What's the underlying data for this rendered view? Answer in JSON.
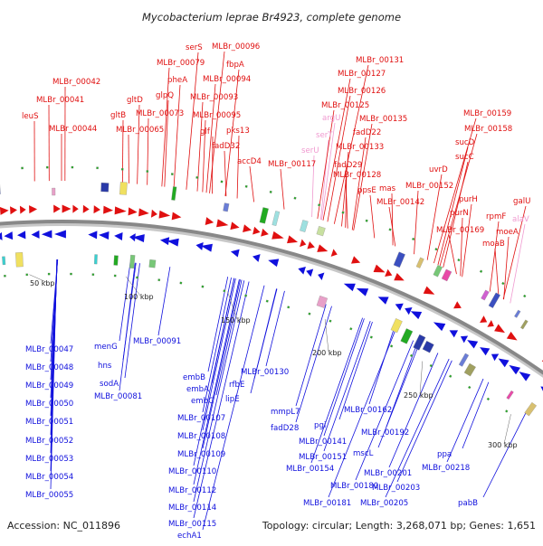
{
  "title": "Mycobacterium leprae Br4923, complete genome",
  "accession_text": "Accession: NC_011896",
  "summary_text": "Topology: circular; Length: 3,268,071 bp; Genes: 1,651",
  "colors": {
    "forward_gene": "#e01010",
    "reverse_gene": "#1010dd",
    "forward_label": "#e01010",
    "reverse_label": "#1010dd",
    "rna_label": "#f09ad0",
    "backbone": "#888888",
    "tick": "#22aa22"
  },
  "kbp_ticks": [
    {
      "label": "50 kbp",
      "angle": 0
    },
    {
      "label": "100 kbp",
      "angle": 0
    },
    {
      "label": "150 kbp",
      "angle": 0
    },
    {
      "label": "200 kbp",
      "angle": 0
    },
    {
      "label": "250 kbp",
      "angle": 0
    },
    {
      "label": "300 kbp",
      "angle": 0
    }
  ],
  "forward_labels": [
    {
      "text": "leuS",
      "kind": "gene"
    },
    {
      "text": "MLBr_00041",
      "kind": "gene"
    },
    {
      "text": "MLBr_00042",
      "kind": "gene"
    },
    {
      "text": "MLBr_00044",
      "kind": "gene"
    },
    {
      "text": "gltB",
      "kind": "gene"
    },
    {
      "text": "gltD",
      "kind": "gene"
    },
    {
      "text": "MLBr_00065",
      "kind": "gene"
    },
    {
      "text": "glpQ",
      "kind": "gene"
    },
    {
      "text": "pheA",
      "kind": "gene"
    },
    {
      "text": "MLBr_00073",
      "kind": "gene"
    },
    {
      "text": "MLBr_00079",
      "kind": "gene"
    },
    {
      "text": "serS",
      "kind": "gene"
    },
    {
      "text": "glf",
      "kind": "gene"
    },
    {
      "text": "MLBr_00093",
      "kind": "gene"
    },
    {
      "text": "MLBr_00094",
      "kind": "gene"
    },
    {
      "text": "fbpA",
      "kind": "gene"
    },
    {
      "text": "MLBr_00095",
      "kind": "gene"
    },
    {
      "text": "MLBr_00096",
      "kind": "gene"
    },
    {
      "text": "pks13",
      "kind": "gene"
    },
    {
      "text": "fadD32",
      "kind": "gene"
    },
    {
      "text": "accD4",
      "kind": "gene"
    },
    {
      "text": "MLBr_00117",
      "kind": "gene"
    },
    {
      "text": "serU",
      "kind": "rna"
    },
    {
      "text": "serT",
      "kind": "rna"
    },
    {
      "text": "argU",
      "kind": "rna"
    },
    {
      "text": "MLBr_00125",
      "kind": "gene"
    },
    {
      "text": "MLBr_00126",
      "kind": "gene"
    },
    {
      "text": "MLBr_00127",
      "kind": "gene"
    },
    {
      "text": "MLBr_00131",
      "kind": "gene"
    },
    {
      "text": "MLBr_00128",
      "kind": "gene"
    },
    {
      "text": "fadD29",
      "kind": "gene"
    },
    {
      "text": "MLBr_00133",
      "kind": "gene"
    },
    {
      "text": "fadD22",
      "kind": "gene"
    },
    {
      "text": "MLBr_00135",
      "kind": "gene"
    },
    {
      "text": "ppsE",
      "kind": "gene"
    },
    {
      "text": "mas",
      "kind": "gene"
    },
    {
      "text": "MLBr_00142",
      "kind": "gene"
    },
    {
      "text": "MLBr_00152",
      "kind": "gene"
    },
    {
      "text": "uvrD",
      "kind": "gene"
    },
    {
      "text": "sucC",
      "kind": "gene"
    },
    {
      "text": "sucD",
      "kind": "gene"
    },
    {
      "text": "MLBr_00158",
      "kind": "gene"
    },
    {
      "text": "MLBr_00159",
      "kind": "gene"
    },
    {
      "text": "purH",
      "kind": "gene"
    },
    {
      "text": "purN",
      "kind": "gene"
    },
    {
      "text": "MLBr_00169",
      "kind": "gene"
    },
    {
      "text": "rpmF",
      "kind": "gene"
    },
    {
      "text": "galU",
      "kind": "gene"
    },
    {
      "text": "alaV",
      "kind": "rna"
    },
    {
      "text": "moeA",
      "kind": "gene"
    },
    {
      "text": "moaB",
      "kind": "gene"
    }
  ],
  "reverse_labels": [
    {
      "text": "MLBr_00047"
    },
    {
      "text": "MLBr_00048"
    },
    {
      "text": "MLBr_00049"
    },
    {
      "text": "MLBr_00050"
    },
    {
      "text": "MLBr_00051"
    },
    {
      "text": "MLBr_00052"
    },
    {
      "text": "MLBr_00053"
    },
    {
      "text": "MLBr_00054"
    },
    {
      "text": "MLBr_00055"
    },
    {
      "text": "menG"
    },
    {
      "text": "hns"
    },
    {
      "text": "sodA"
    },
    {
      "text": "MLBr_00081"
    },
    {
      "text": "MLBr_00091"
    },
    {
      "text": "embB"
    },
    {
      "text": "embA"
    },
    {
      "text": "embC"
    },
    {
      "text": "rfbE"
    },
    {
      "text": "lipE"
    },
    {
      "text": "MLBr_00107"
    },
    {
      "text": "MLBr_00108"
    },
    {
      "text": "MLBr_00109"
    },
    {
      "text": "MLBr_00110"
    },
    {
      "text": "MLBr_00112"
    },
    {
      "text": "MLBr_00114"
    },
    {
      "text": "MLBr_00115"
    },
    {
      "text": "echA1"
    },
    {
      "text": "MLBr_00130"
    },
    {
      "text": "mmpL7"
    },
    {
      "text": "fadD28"
    },
    {
      "text": "MLBr_00141"
    },
    {
      "text": "pgi"
    },
    {
      "text": "MLBr_00151"
    },
    {
      "text": "MLBr_00154"
    },
    {
      "text": "MLBr_00162"
    },
    {
      "text": "mscL"
    },
    {
      "text": "MLBr_00180"
    },
    {
      "text": "MLBr_00181"
    },
    {
      "text": "MLBr_00192"
    },
    {
      "text": "MLBr_00201"
    },
    {
      "text": "MLBr_00203"
    },
    {
      "text": "MLBr_00205"
    },
    {
      "text": "ppa"
    },
    {
      "text": "MLBr_00218"
    },
    {
      "text": "pabB"
    }
  ]
}
